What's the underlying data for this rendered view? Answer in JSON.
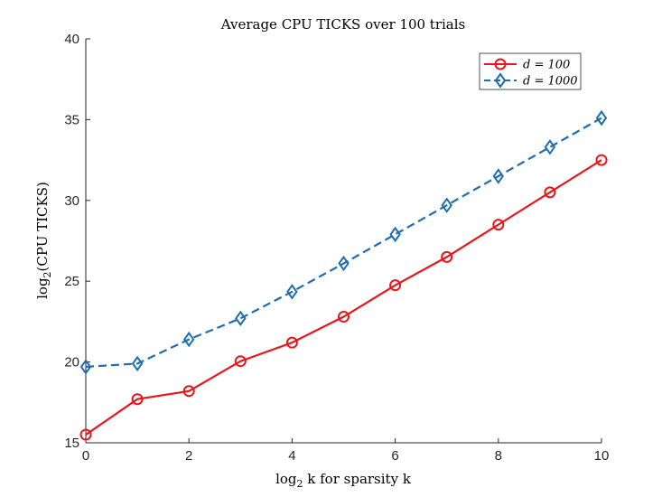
{
  "chart_data": {
    "type": "line",
    "title": "Average CPU TICKS over 100 trials",
    "xlabel": "log₂ k for sparsity k",
    "ylabel": "log₂(CPU TICKS)",
    "x": [
      0,
      1,
      2,
      3,
      4,
      5,
      6,
      7,
      8,
      9,
      10
    ],
    "xlim": [
      0,
      10
    ],
    "ylim": [
      15,
      40
    ],
    "xticks": [
      0,
      2,
      4,
      6,
      8,
      10
    ],
    "yticks": [
      15,
      20,
      25,
      30,
      35,
      40
    ],
    "grid": false,
    "legend_position": "top-right",
    "series": [
      {
        "name": "d = 100",
        "color": "#e8171c",
        "line_style": "solid",
        "marker": "circle",
        "values": [
          15.5,
          17.7,
          18.2,
          20.05,
          21.2,
          22.8,
          24.75,
          26.5,
          28.5,
          30.5,
          32.5
        ]
      },
      {
        "name": "d = 1000",
        "color": "#1f6db0",
        "line_style": "dashed",
        "marker": "diamond",
        "values": [
          19.7,
          19.9,
          21.4,
          22.7,
          24.35,
          26.1,
          27.9,
          29.7,
          31.5,
          33.3,
          35.1
        ]
      }
    ]
  }
}
